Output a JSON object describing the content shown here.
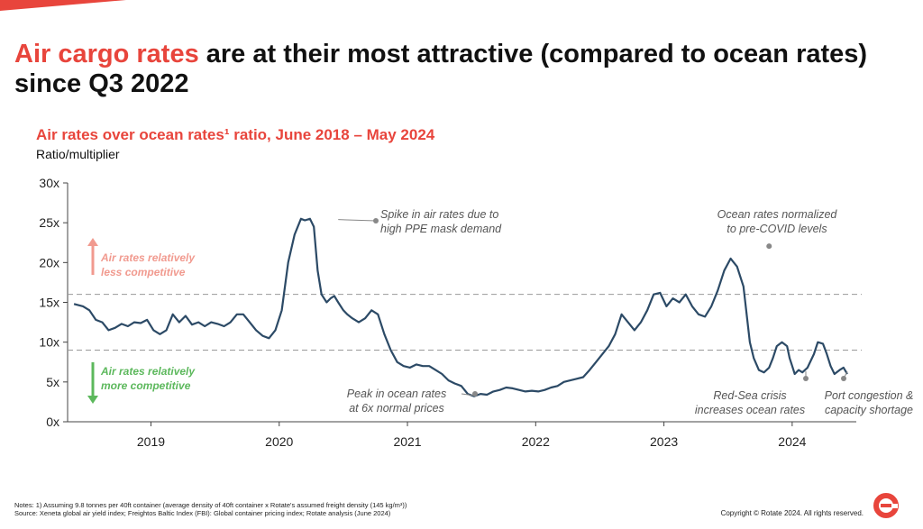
{
  "headline": {
    "accent": "Air cargo rates",
    "rest": " are at their most attractive (compared to ocean rates) since Q3 2022"
  },
  "footer": {
    "notes_line1": "Notes: 1) Assuming 9.8 tonnes per 40ft container (average density of 40ft container x Rotate's assumed freight density (145 kg/m³))",
    "notes_line2": "Source: Xeneta global air yield index; Freightos Baltic Index (FBI): Global container pricing index; Rotate analysis (June 2024)",
    "copyright": "Copyright © Rotate 2024. All rights reserved."
  },
  "colors": {
    "accent": "#e8453c",
    "line": "#2c4a66",
    "up_arrow": "#f19a8f",
    "down_arrow": "#5cb85c"
  },
  "chart_data": {
    "type": "line",
    "title": "Air rates over ocean rates¹ ratio, June 2018 – May 2024",
    "ylabel": "Ratio/multiplier",
    "xlim": [
      2018.35,
      2024.5
    ],
    "ylim": [
      0,
      30
    ],
    "xticks": [
      2019,
      2020,
      2021,
      2022,
      2023,
      2024
    ],
    "xtick_labels": [
      "2019",
      "2020",
      "2021",
      "2022",
      "2023",
      "2024"
    ],
    "yticks": [
      0,
      5,
      10,
      15,
      20,
      25,
      30
    ],
    "ytick_labels": [
      "0x",
      "5x",
      "10x",
      "15x",
      "20x",
      "25x",
      "30x"
    ],
    "grid": false,
    "legend": "none",
    "reference_lines": [
      16,
      9
    ],
    "series": [
      {
        "x": [
          2018.4,
          2018.47,
          2018.52,
          2018.57,
          2018.62,
          2018.67,
          2018.72,
          2018.77,
          2018.82,
          2018.87,
          2018.92,
          2018.97,
          2019.02,
          2019.07,
          2019.12,
          2019.17,
          2019.22,
          2019.27,
          2019.32,
          2019.37,
          2019.42,
          2019.47,
          2019.52,
          2019.57,
          2019.62,
          2019.67,
          2019.72,
          2019.77,
          2019.82,
          2019.87,
          2019.92,
          2019.97,
          2020.02,
          2020.07,
          2020.12,
          2020.17,
          2020.2,
          2020.24,
          2020.27,
          2020.3,
          2020.33,
          2020.37,
          2020.4,
          2020.43,
          2020.46,
          2020.5,
          2020.53,
          2020.57,
          2020.62,
          2020.67,
          2020.72,
          2020.77,
          2020.82,
          2020.87,
          2020.92,
          2020.97,
          2021.02,
          2021.07,
          2021.12,
          2021.17,
          2021.22,
          2021.27,
          2021.32,
          2021.37,
          2021.42,
          2021.47,
          2021.52,
          2021.57,
          2021.62,
          2021.67,
          2021.72,
          2021.77,
          2021.82,
          2021.87,
          2021.92,
          2021.97,
          2022.02,
          2022.07,
          2022.12,
          2022.17,
          2022.22,
          2022.27,
          2022.32,
          2022.37,
          2022.42,
          2022.47,
          2022.52,
          2022.57,
          2022.62,
          2022.67,
          2022.72,
          2022.77,
          2022.82,
          2022.87,
          2022.92,
          2022.97,
          2023.02,
          2023.07,
          2023.12,
          2023.17,
          2023.22,
          2023.27,
          2023.32,
          2023.37,
          2023.42,
          2023.47,
          2023.52,
          2023.57,
          2023.62,
          2023.67,
          2023.7,
          2023.74,
          2023.78,
          2023.82,
          2023.85,
          2023.88,
          2023.92,
          2023.96,
          2023.98,
          2024.0,
          2024.02,
          2024.05,
          2024.08,
          2024.12,
          2024.17,
          2024.2,
          2024.24,
          2024.27,
          2024.3,
          2024.33,
          2024.37,
          2024.4,
          2024.43
        ],
        "y": [
          14.8,
          14.5,
          14.0,
          12.8,
          12.5,
          11.5,
          11.8,
          12.3,
          12.0,
          12.5,
          12.4,
          12.8,
          11.5,
          11.0,
          11.5,
          13.5,
          12.5,
          13.3,
          12.2,
          12.5,
          12.0,
          12.5,
          12.3,
          12.0,
          12.5,
          13.5,
          13.5,
          12.5,
          11.5,
          10.8,
          10.5,
          11.5,
          14.0,
          20.0,
          23.5,
          25.5,
          25.3,
          25.5,
          24.5,
          19.0,
          16.0,
          15.0,
          15.5,
          15.8,
          15.0,
          14.0,
          13.5,
          13.0,
          12.5,
          13.0,
          14.0,
          13.5,
          11.0,
          9.0,
          7.5,
          7.0,
          6.8,
          7.2,
          7.0,
          7.0,
          6.5,
          6.0,
          5.2,
          4.8,
          4.5,
          3.5,
          3.2,
          3.5,
          3.4,
          3.8,
          4.0,
          4.3,
          4.2,
          4.0,
          3.8,
          3.9,
          3.8,
          4.0,
          4.3,
          4.5,
          5.0,
          5.2,
          5.4,
          5.6,
          6.5,
          7.5,
          8.5,
          9.5,
          11.0,
          13.5,
          12.5,
          11.5,
          12.5,
          14.0,
          16.0,
          16.2,
          14.5,
          15.5,
          15.0,
          16.0,
          14.5,
          13.5,
          13.2,
          14.5,
          16.5,
          19.0,
          20.5,
          19.5,
          17.0,
          10.0,
          8.0,
          6.5,
          6.2,
          6.8,
          8.0,
          9.5,
          10.0,
          9.5,
          8.0,
          7.0,
          6.0,
          6.5,
          6.2,
          6.8,
          8.5,
          10.0,
          9.8,
          8.5,
          7.0,
          6.0,
          6.5,
          6.8,
          6.0
        ]
      }
    ],
    "annotations": [
      {
        "text": [
          "Spike in air rates due to",
          "high PPE mask demand"
        ],
        "x": 2020.42,
        "y": 25.5
      },
      {
        "text": [
          "Ocean rates normalized",
          "to pre-COVID levels"
        ],
        "x": 2023.82,
        "y": 21.5
      },
      {
        "text": [
          "Peak in ocean rates",
          "at 6x normal prices"
        ],
        "x": 2021.52,
        "y": 3.2
      },
      {
        "text": [
          "Red-Sea crisis",
          "increases ocean rates"
        ],
        "x": 2024.08,
        "y": 6.0
      },
      {
        "text": [
          "Port congestion &",
          "capacity shortage"
        ],
        "x": 2024.4,
        "y": 6.0
      }
    ],
    "zones": [
      {
        "text": [
          "Air rates relatively",
          "less competitive"
        ],
        "direction": "up"
      },
      {
        "text": [
          "Air rates relatively",
          "more competitive"
        ],
        "direction": "down"
      }
    ]
  }
}
